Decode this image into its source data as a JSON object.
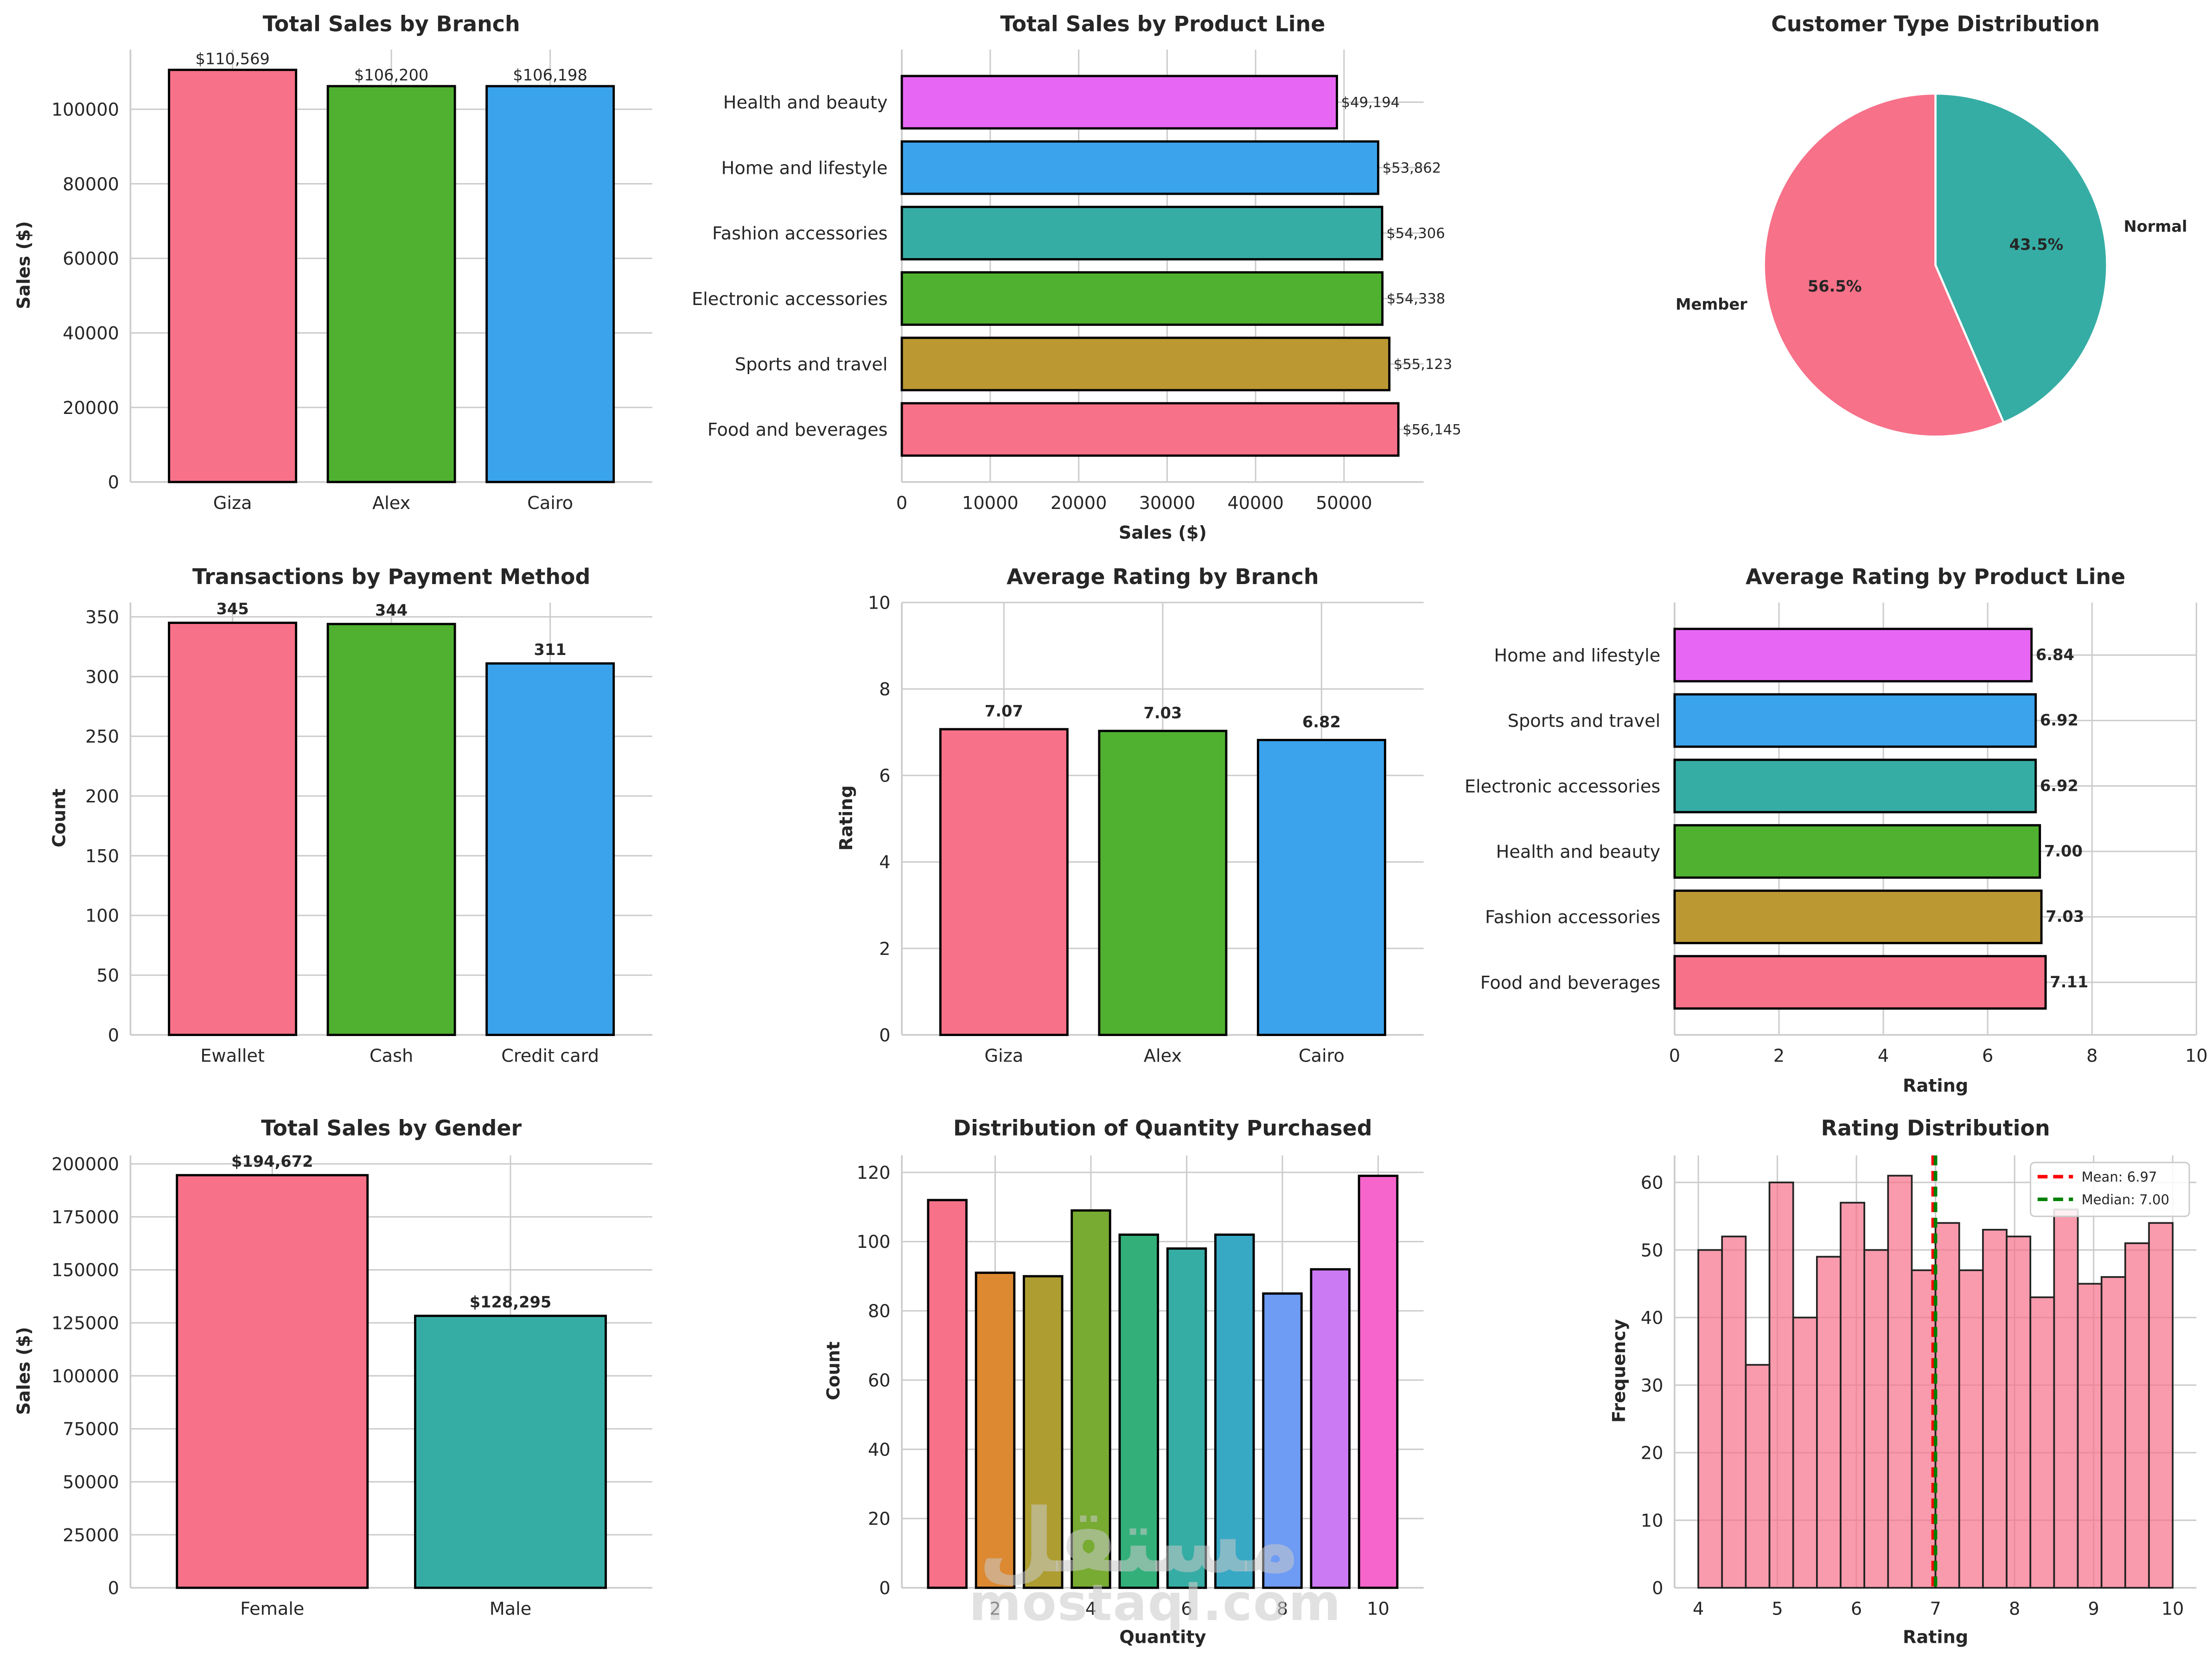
{
  "chart_data": [
    {
      "id": "branch_sales",
      "type": "bar",
      "title": "Total Sales by Branch",
      "xlabel": "",
      "ylabel": "Sales ($)",
      "categories": [
        "Giza",
        "Alex",
        "Cairo"
      ],
      "values": [
        110569,
        106200,
        106198
      ],
      "data_labels": [
        "$110,569",
        "$106,200",
        "$106,198"
      ],
      "colors": [
        "#f77189",
        "#50b131",
        "#3ba3ec"
      ],
      "ylim": [
        0,
        116000
      ],
      "yticks": [
        0,
        20000,
        40000,
        60000,
        80000,
        100000
      ],
      "grid": true
    },
    {
      "id": "productline_sales",
      "type": "bar",
      "orientation": "horizontal",
      "title": "Total Sales by Product Line",
      "xlabel": "Sales ($)",
      "ylabel": "",
      "categories": [
        "Health and beauty",
        "Home and lifestyle",
        "Fashion accessories",
        "Electronic accessories",
        "Sports and travel",
        "Food and beverages"
      ],
      "values": [
        49194,
        53862,
        54306,
        54338,
        55123,
        56145
      ],
      "data_labels": [
        "$49,194",
        "$53,862",
        "$54,306",
        "$54,338",
        "$55,123",
        "$56,145"
      ],
      "colors": [
        "#e866f4",
        "#3ba3ec",
        "#36ada4",
        "#50b131",
        "#bb9832",
        "#f77189"
      ],
      "xlim": [
        0,
        59000
      ],
      "xticks": [
        0,
        10000,
        20000,
        30000,
        40000,
        50000
      ],
      "grid": true
    },
    {
      "id": "customer_type",
      "type": "pie",
      "title": "Customer Type Distribution",
      "labels": [
        "Member",
        "Normal"
      ],
      "values": [
        56.5,
        43.5
      ],
      "pct_labels": [
        "56.5%",
        "43.5%"
      ],
      "colors": [
        "#f77189",
        "#36ada4"
      ],
      "start_angle": 90
    },
    {
      "id": "payment_method",
      "type": "bar",
      "title": "Transactions by Payment Method",
      "xlabel": "",
      "ylabel": "Count",
      "categories": [
        "Ewallet",
        "Cash",
        "Credit card"
      ],
      "values": [
        345,
        344,
        311
      ],
      "data_labels": [
        "345",
        "344",
        "311"
      ],
      "colors": [
        "#f77189",
        "#50b131",
        "#3ba3ec"
      ],
      "ylim": [
        0,
        362
      ],
      "yticks": [
        0,
        50,
        100,
        150,
        200,
        250,
        300,
        350
      ],
      "grid": true
    },
    {
      "id": "rating_branch",
      "type": "bar",
      "title": "Average Rating by Branch",
      "xlabel": "",
      "ylabel": "Rating",
      "categories": [
        "Giza",
        "Alex",
        "Cairo"
      ],
      "values": [
        7.07,
        7.03,
        6.82
      ],
      "data_labels": [
        "7.07",
        "7.03",
        "6.82"
      ],
      "colors": [
        "#f77189",
        "#50b131",
        "#3ba3ec"
      ],
      "ylim": [
        0,
        10
      ],
      "yticks": [
        0,
        2,
        4,
        6,
        8,
        10
      ],
      "grid": true
    },
    {
      "id": "rating_productline",
      "type": "bar",
      "orientation": "horizontal",
      "title": "Average Rating by Product Line",
      "xlabel": "Rating",
      "ylabel": "",
      "categories": [
        "Home and lifestyle",
        "Sports and travel",
        "Electronic accessories",
        "Health and beauty",
        "Fashion accessories",
        "Food and beverages"
      ],
      "values": [
        6.84,
        6.92,
        6.92,
        7.0,
        7.03,
        7.11
      ],
      "data_labels": [
        "6.84",
        "6.92",
        "6.92",
        "7.00",
        "7.03",
        "7.11"
      ],
      "colors": [
        "#e866f4",
        "#3ba3ec",
        "#36ada4",
        "#50b131",
        "#bb9832",
        "#f77189"
      ],
      "xlim": [
        0,
        10
      ],
      "xticks": [
        0,
        2,
        4,
        6,
        8,
        10
      ],
      "grid": true
    },
    {
      "id": "gender_sales",
      "type": "bar",
      "title": "Total Sales by Gender",
      "xlabel": "",
      "ylabel": "Sales ($)",
      "categories": [
        "Female",
        "Male"
      ],
      "values": [
        194672,
        128295
      ],
      "data_labels": [
        "$194,672",
        "$128,295"
      ],
      "colors": [
        "#f77189",
        "#36ada4"
      ],
      "ylim": [
        0,
        204000
      ],
      "yticks": [
        0,
        25000,
        50000,
        75000,
        100000,
        125000,
        150000,
        175000,
        200000
      ],
      "grid": true
    },
    {
      "id": "quantity_dist",
      "type": "bar",
      "title": "Distribution of Quantity Purchased",
      "xlabel": "Quantity",
      "ylabel": "Count",
      "categories": [
        1,
        2,
        3,
        4,
        5,
        6,
        7,
        8,
        9,
        10
      ],
      "values": [
        112,
        91,
        90,
        109,
        102,
        98,
        102,
        85,
        92,
        119
      ],
      "colors": [
        "#f77189",
        "#dc8932",
        "#ae9d31",
        "#77ab31",
        "#33b07a",
        "#36ada4",
        "#38a9c5",
        "#6e9bf4",
        "#cc7af4",
        "#f565cc"
      ],
      "xlim": [
        0.05,
        10.95
      ],
      "xticks": [
        2,
        4,
        6,
        8,
        10
      ],
      "ylim": [
        0,
        124.9
      ],
      "yticks": [
        0,
        20,
        40,
        60,
        80,
        100,
        120
      ],
      "grid": true
    },
    {
      "id": "rating_hist",
      "type": "histogram",
      "title": "Rating Distribution",
      "xlabel": "Rating",
      "ylabel": "Frequency",
      "bin_start": 4.0,
      "bin_width": 0.3,
      "values": [
        50,
        52,
        33,
        60,
        40,
        49,
        57,
        50,
        61,
        47,
        54,
        47,
        53,
        52,
        43,
        56,
        45,
        46,
        51,
        54
      ],
      "color": "#f77189",
      "xlim": [
        3.7,
        10.3
      ],
      "xticks": [
        4,
        5,
        6,
        7,
        8,
        9,
        10
      ],
      "ylim": [
        0,
        64
      ],
      "yticks": [
        0,
        10,
        20,
        30,
        40,
        50,
        60
      ],
      "lines": [
        {
          "name": "Mean: 6.97",
          "x": 6.97,
          "color": "#ff0000"
        },
        {
          "name": "Median: 7.00",
          "x": 7.0,
          "color": "#008000"
        }
      ],
      "legend_position": "top-right",
      "grid": true
    }
  ],
  "watermark": {
    "arabic": "مستقل",
    "latin": "mostaql.com"
  }
}
